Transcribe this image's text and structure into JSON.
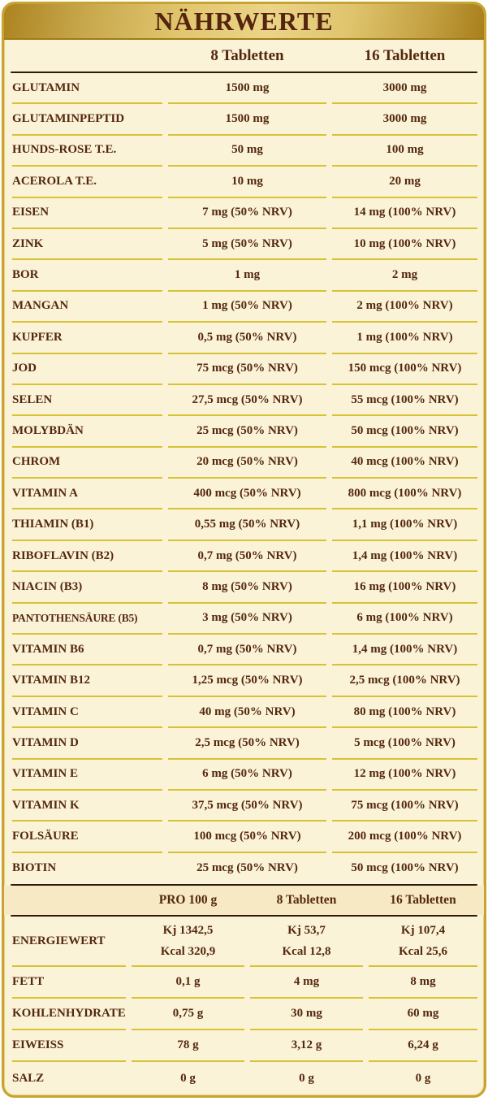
{
  "title": "NÄHRWERTE",
  "main_table": {
    "columns": [
      "8 Tabletten",
      "16 Tabletten"
    ],
    "rows": [
      {
        "label": "GLUTAMIN",
        "v8": "1500 mg",
        "v16": "3000 mg"
      },
      {
        "label": "GLUTAMINPEPTID",
        "v8": "1500 mg",
        "v16": "3000 mg"
      },
      {
        "label": "HUNDS-ROSE T.E.",
        "v8": "50 mg",
        "v16": "100 mg"
      },
      {
        "label": "ACEROLA T.E.",
        "v8": "10 mg",
        "v16": "20 mg"
      },
      {
        "label": "EISEN",
        "v8": "7 mg (50% NRV)",
        "v16": "14 mg (100% NRV)"
      },
      {
        "label": "ZINK",
        "v8": "5 mg (50% NRV)",
        "v16": "10 mg (100% NRV)"
      },
      {
        "label": "BOR",
        "v8": "1 mg",
        "v16": "2 mg"
      },
      {
        "label": "MANGAN",
        "v8": "1 mg (50% NRV)",
        "v16": "2 mg (100% NRV)"
      },
      {
        "label": "KUPFER",
        "v8": "0,5 mg (50% NRV)",
        "v16": "1 mg (100% NRV)"
      },
      {
        "label": "JOD",
        "v8": "75 mcg (50% NRV)",
        "v16": "150 mcg (100% NRV)"
      },
      {
        "label": "SELEN",
        "v8": "27,5 mcg (50% NRV)",
        "v16": "55 mcg (100% NRV)"
      },
      {
        "label": "MOLYBDÄN",
        "v8": "25 mcg (50% NRV)",
        "v16": "50 mcg (100% NRV)"
      },
      {
        "label": "CHROM",
        "v8": "20 mcg (50% NRV)",
        "v16": "40 mcg (100% NRV)"
      },
      {
        "label": "VITAMIN A",
        "v8": "400 mcg (50% NRV)",
        "v16": "800 mcg (100% NRV)"
      },
      {
        "label": "THIAMIN (B1)",
        "v8": "0,55 mg (50% NRV)",
        "v16": "1,1 mg (100% NRV)"
      },
      {
        "label": "RIBOFLAVIN (B2)",
        "v8": "0,7 mg (50% NRV)",
        "v16": "1,4 mg (100% NRV)"
      },
      {
        "label": "NIACIN (B3)",
        "v8": "8 mg (50% NRV)",
        "v16": "16 mg (100% NRV)"
      },
      {
        "label": "PANTOTHENSÄURE (B5)",
        "v8": "3 mg (50% NRV)",
        "v16": "6 mg (100% NRV)"
      },
      {
        "label": "VITAMIN B6",
        "v8": "0,7 mg (50% NRV)",
        "v16": "1,4 mg (100% NRV)"
      },
      {
        "label": "VITAMIN B12",
        "v8": "1,25 mcg (50% NRV)",
        "v16": "2,5 mcg (100% NRV)"
      },
      {
        "label": "VITAMIN C",
        "v8": "40 mg (50% NRV)",
        "v16": "80 mg (100% NRV)"
      },
      {
        "label": "VITAMIN D",
        "v8": "2,5 mcg (50% NRV)",
        "v16": "5 mcg (100% NRV)"
      },
      {
        "label": "VITAMIN E",
        "v8": "6 mg (50% NRV)",
        "v16": "12 mg (100% NRV)"
      },
      {
        "label": "VITAMIN K",
        "v8": "37,5 mcg (50% NRV)",
        "v16": "75 mcg (100% NRV)"
      },
      {
        "label": "FOLSÄURE",
        "v8": "100 mcg (50% NRV)",
        "v16": "200 mcg (100% NRV)"
      },
      {
        "label": "BIOTIN",
        "v8": "25 mcg (50% NRV)",
        "v16": "50 mcg (100% NRV)"
      }
    ]
  },
  "energy_table": {
    "columns": [
      "PRO 100 g",
      "8 Tabletten",
      "16 Tabletten"
    ],
    "rows": [
      {
        "label": "ENERGIEWERT",
        "per100": [
          "Kj 1342,5",
          "Kcal 320,9"
        ],
        "v8": [
          "Kj 53,7",
          "Kcal 12,8"
        ],
        "v16": [
          "Kj 107,4",
          "Kcal 25,6"
        ]
      },
      {
        "label": "FETT",
        "per100": "0,1 g",
        "v8": "4 mg",
        "v16": "8 mg"
      },
      {
        "label": "KOHLENHYDRATE",
        "per100": "0,75 g",
        "v8": "30 mg",
        "v16": "60 mg"
      },
      {
        "label": "EIWEISS",
        "per100": "78 g",
        "v8": "3,12 g",
        "v16": "6,24 g"
      },
      {
        "label": "SALZ",
        "per100": "0 g",
        "v8": "0 g",
        "v16": "0 g"
      }
    ]
  },
  "colors": {
    "card_border_gold": "#C8A42E",
    "banner_gold_dark": "#A8811E",
    "banner_gold_light": "#EBD488",
    "body_cream": "#FBF3D8",
    "energy_header_cream": "#F7E9C4",
    "divider_gold": "#D7C235",
    "divider_dark": "#2E1B0C",
    "text_maroon": "#54280F"
  }
}
